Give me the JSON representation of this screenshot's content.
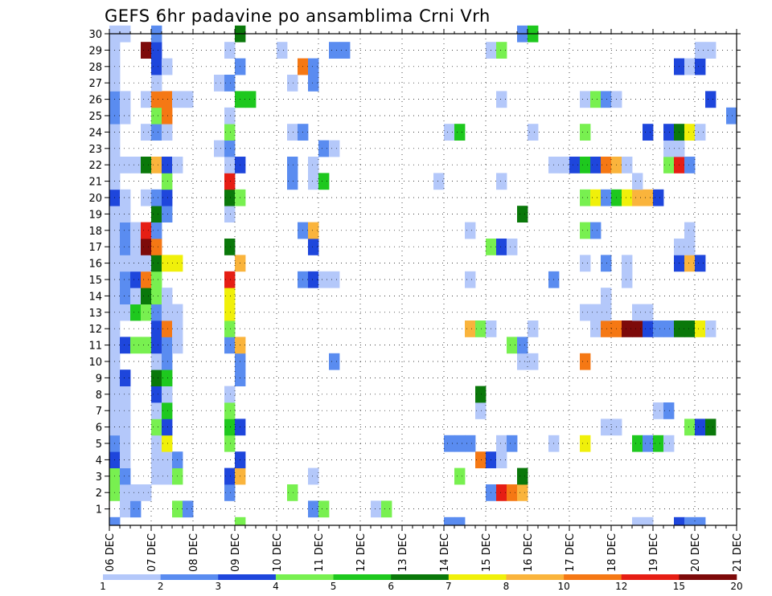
{
  "chart_data": {
    "type": "heatmap",
    "title": "GEFS 6hr padavine po ansamblima Crni Vrh",
    "xlabel": "",
    "ylabel": "",
    "x_tick_labels": [
      "06 DEC",
      "07 DEC",
      "08 DEC",
      "09 DEC",
      "10 DEC",
      "11 DEC",
      "12 DEC",
      "13 DEC",
      "14 DEC",
      "15 DEC",
      "16 DEC",
      "17 DEC",
      "18 DEC",
      "19 DEC",
      "20 DEC",
      "21 DEC"
    ],
    "y_tick_labels": [
      "1",
      "2",
      "3",
      "4",
      "5",
      "6",
      "7",
      "8",
      "9",
      "10",
      "11",
      "12",
      "13",
      "14",
      "15",
      "16",
      "17",
      "18",
      "19",
      "20",
      "21",
      "22",
      "23",
      "24",
      "25",
      "26",
      "27",
      "28",
      "29",
      "30"
    ],
    "xlim": [
      "06 DEC 00Z",
      "21 DEC 00Z"
    ],
    "ylim": [
      0,
      30
    ],
    "time_step_hours": 6,
    "grid": true,
    "colorbar": {
      "levels": [
        "1",
        "2",
        "3",
        "4",
        "5",
        "6",
        "7",
        "8",
        "10",
        "12",
        "15",
        "20"
      ],
      "colors": [
        "#b4c8fa",
        "#5a8cf0",
        "#1e46dc",
        "#78f050",
        "#1ec81e",
        "#0a780a",
        "#f0f00a",
        "#fab43c",
        "#f57814",
        "#e61e14",
        "#7d0a0a"
      ]
    },
    "cells": [
      [
        1,
        1,
        1
      ],
      [
        1,
        2,
        2
      ],
      [
        1,
        6,
        4
      ],
      [
        1,
        7,
        2
      ],
      [
        1,
        19,
        2
      ],
      [
        1,
        20,
        4
      ],
      [
        1,
        25,
        1
      ],
      [
        1,
        26,
        4
      ],
      [
        2,
        0,
        4
      ],
      [
        2,
        1,
        1
      ],
      [
        2,
        2,
        1
      ],
      [
        2,
        3,
        1
      ],
      [
        2,
        11,
        2
      ],
      [
        2,
        17,
        4
      ],
      [
        2,
        36,
        2
      ],
      [
        2,
        37,
        10
      ],
      [
        2,
        38,
        9
      ],
      [
        2,
        39,
        8
      ],
      [
        3,
        0,
        4
      ],
      [
        3,
        1,
        2
      ],
      [
        3,
        4,
        1
      ],
      [
        3,
        5,
        1
      ],
      [
        3,
        6,
        4
      ],
      [
        3,
        11,
        3
      ],
      [
        3,
        12,
        8
      ],
      [
        3,
        19,
        1
      ],
      [
        3,
        33,
        4
      ],
      [
        3,
        39,
        6
      ],
      [
        4,
        0,
        3
      ],
      [
        4,
        1,
        1
      ],
      [
        4,
        4,
        1
      ],
      [
        4,
        5,
        1
      ],
      [
        4,
        6,
        2
      ],
      [
        4,
        12,
        3
      ],
      [
        4,
        35,
        9
      ],
      [
        4,
        36,
        3
      ],
      [
        4,
        37,
        1
      ],
      [
        5,
        0,
        2
      ],
      [
        5,
        1,
        1
      ],
      [
        5,
        4,
        1
      ],
      [
        5,
        5,
        7
      ],
      [
        5,
        11,
        4
      ],
      [
        5,
        32,
        2
      ],
      [
        5,
        33,
        2
      ],
      [
        5,
        34,
        2
      ],
      [
        5,
        37,
        1
      ],
      [
        5,
        38,
        2
      ],
      [
        5,
        42,
        1
      ],
      [
        5,
        45,
        7
      ],
      [
        5,
        50,
        5
      ],
      [
        5,
        51,
        2
      ],
      [
        5,
        52,
        5
      ],
      [
        5,
        53,
        1
      ],
      [
        6,
        0,
        1
      ],
      [
        6,
        1,
        1
      ],
      [
        6,
        4,
        4
      ],
      [
        6,
        5,
        3
      ],
      [
        6,
        11,
        5
      ],
      [
        6,
        12,
        3
      ],
      [
        6,
        47,
        1
      ],
      [
        6,
        48,
        1
      ],
      [
        6,
        55,
        4
      ],
      [
        6,
        56,
        3
      ],
      [
        6,
        57,
        6
      ],
      [
        7,
        0,
        1
      ],
      [
        7,
        1,
        1
      ],
      [
        7,
        4,
        1
      ],
      [
        7,
        5,
        5
      ],
      [
        7,
        11,
        4
      ],
      [
        7,
        35,
        1
      ],
      [
        7,
        52,
        1
      ],
      [
        7,
        53,
        2
      ],
      [
        8,
        0,
        1
      ],
      [
        8,
        1,
        1
      ],
      [
        8,
        4,
        3
      ],
      [
        8,
        5,
        1
      ],
      [
        8,
        11,
        1
      ],
      [
        8,
        35,
        6
      ],
      [
        9,
        0,
        1
      ],
      [
        9,
        1,
        3
      ],
      [
        9,
        4,
        6
      ],
      [
        9,
        5,
        5
      ],
      [
        9,
        12,
        2
      ],
      [
        10,
        0,
        1
      ],
      [
        10,
        4,
        1
      ],
      [
        10,
        5,
        2
      ],
      [
        10,
        12,
        2
      ],
      [
        10,
        21,
        2
      ],
      [
        10,
        39,
        1
      ],
      [
        10,
        40,
        1
      ],
      [
        10,
        45,
        9
      ],
      [
        11,
        0,
        1
      ],
      [
        11,
        1,
        3
      ],
      [
        11,
        2,
        4
      ],
      [
        11,
        3,
        4
      ],
      [
        11,
        4,
        3
      ],
      [
        11,
        5,
        2
      ],
      [
        11,
        6,
        1
      ],
      [
        11,
        11,
        2
      ],
      [
        11,
        12,
        8
      ],
      [
        11,
        38,
        4
      ],
      [
        11,
        39,
        2
      ],
      [
        12,
        0,
        1
      ],
      [
        12,
        4,
        3
      ],
      [
        12,
        5,
        9
      ],
      [
        12,
        6,
        1
      ],
      [
        12,
        11,
        4
      ],
      [
        12,
        34,
        8
      ],
      [
        12,
        35,
        4
      ],
      [
        12,
        36,
        1
      ],
      [
        12,
        40,
        1
      ],
      [
        12,
        46,
        1
      ],
      [
        12,
        47,
        9
      ],
      [
        12,
        48,
        9
      ],
      [
        12,
        49,
        11
      ],
      [
        12,
        50,
        11
      ],
      [
        12,
        51,
        3
      ],
      [
        12,
        52,
        2
      ],
      [
        12,
        53,
        2
      ],
      [
        12,
        54,
        6
      ],
      [
        12,
        55,
        6
      ],
      [
        12,
        56,
        7
      ],
      [
        12,
        57,
        1
      ],
      [
        13,
        0,
        1
      ],
      [
        13,
        1,
        1
      ],
      [
        13,
        2,
        5
      ],
      [
        13,
        3,
        4
      ],
      [
        13,
        4,
        2
      ],
      [
        13,
        5,
        1
      ],
      [
        13,
        6,
        1
      ],
      [
        13,
        11,
        7
      ],
      [
        13,
        45,
        1
      ],
      [
        13,
        46,
        1
      ],
      [
        13,
        47,
        1
      ],
      [
        13,
        50,
        1
      ],
      [
        13,
        51,
        1
      ],
      [
        14,
        0,
        1
      ],
      [
        14,
        1,
        2
      ],
      [
        14,
        2,
        1
      ],
      [
        14,
        3,
        6
      ],
      [
        14,
        4,
        4
      ],
      [
        14,
        5,
        1
      ],
      [
        14,
        11,
        7
      ],
      [
        14,
        47,
        1
      ],
      [
        15,
        0,
        1
      ],
      [
        15,
        1,
        2
      ],
      [
        15,
        2,
        3
      ],
      [
        15,
        3,
        9
      ],
      [
        15,
        4,
        4
      ],
      [
        15,
        11,
        10
      ],
      [
        15,
        18,
        2
      ],
      [
        15,
        19,
        3
      ],
      [
        15,
        20,
        1
      ],
      [
        15,
        21,
        1
      ],
      [
        15,
        34,
        1
      ],
      [
        15,
        42,
        2
      ],
      [
        15,
        49,
        1
      ],
      [
        16,
        0,
        1
      ],
      [
        16,
        1,
        1
      ],
      [
        16,
        2,
        1
      ],
      [
        16,
        3,
        1
      ],
      [
        16,
        4,
        6
      ],
      [
        16,
        5,
        7
      ],
      [
        16,
        6,
        7
      ],
      [
        16,
        12,
        8
      ],
      [
        16,
        45,
        1
      ],
      [
        16,
        47,
        2
      ],
      [
        16,
        49,
        1
      ],
      [
        16,
        54,
        3
      ],
      [
        16,
        55,
        8
      ],
      [
        16,
        56,
        3
      ],
      [
        17,
        0,
        1
      ],
      [
        17,
        1,
        2
      ],
      [
        17,
        2,
        1
      ],
      [
        17,
        3,
        11
      ],
      [
        17,
        4,
        9
      ],
      [
        17,
        11,
        6
      ],
      [
        17,
        19,
        3
      ],
      [
        17,
        36,
        4
      ],
      [
        17,
        37,
        3
      ],
      [
        17,
        38,
        1
      ],
      [
        17,
        54,
        1
      ],
      [
        17,
        55,
        1
      ],
      [
        18,
        0,
        1
      ],
      [
        18,
        1,
        2
      ],
      [
        18,
        2,
        1
      ],
      [
        18,
        3,
        10
      ],
      [
        18,
        4,
        2
      ],
      [
        18,
        18,
        2
      ],
      [
        18,
        19,
        8
      ],
      [
        18,
        34,
        1
      ],
      [
        18,
        45,
        4
      ],
      [
        18,
        46,
        2
      ],
      [
        18,
        55,
        1
      ],
      [
        19,
        0,
        1
      ],
      [
        19,
        1,
        1
      ],
      [
        19,
        4,
        6
      ],
      [
        19,
        5,
        2
      ],
      [
        19,
        11,
        1
      ],
      [
        19,
        39,
        6
      ],
      [
        20,
        0,
        3
      ],
      [
        20,
        1,
        1
      ],
      [
        20,
        3,
        1
      ],
      [
        20,
        4,
        2
      ],
      [
        20,
        5,
        3
      ],
      [
        20,
        11,
        6
      ],
      [
        20,
        12,
        4
      ],
      [
        20,
        45,
        4
      ],
      [
        20,
        46,
        7
      ],
      [
        20,
        47,
        2
      ],
      [
        20,
        48,
        5
      ],
      [
        20,
        49,
        7
      ],
      [
        20,
        50,
        8
      ],
      [
        20,
        51,
        8
      ],
      [
        20,
        52,
        3
      ],
      [
        21,
        0,
        1
      ],
      [
        21,
        5,
        4
      ],
      [
        21,
        11,
        10
      ],
      [
        21,
        17,
        2
      ],
      [
        21,
        19,
        1
      ],
      [
        21,
        20,
        5
      ],
      [
        21,
        31,
        1
      ],
      [
        21,
        37,
        1
      ],
      [
        21,
        50,
        1
      ],
      [
        22,
        0,
        1
      ],
      [
        22,
        1,
        1
      ],
      [
        22,
        2,
        1
      ],
      [
        22,
        3,
        6
      ],
      [
        22,
        4,
        8
      ],
      [
        22,
        5,
        3
      ],
      [
        22,
        6,
        1
      ],
      [
        22,
        11,
        1
      ],
      [
        22,
        12,
        3
      ],
      [
        22,
        17,
        2
      ],
      [
        22,
        19,
        1
      ],
      [
        22,
        42,
        1
      ],
      [
        22,
        43,
        1
      ],
      [
        22,
        44,
        3
      ],
      [
        22,
        45,
        5
      ],
      [
        22,
        46,
        3
      ],
      [
        22,
        47,
        9
      ],
      [
        22,
        48,
        8
      ],
      [
        22,
        49,
        1
      ],
      [
        22,
        53,
        4
      ],
      [
        22,
        54,
        10
      ],
      [
        22,
        55,
        2
      ],
      [
        23,
        0,
        1
      ],
      [
        23,
        10,
        1
      ],
      [
        23,
        11,
        2
      ],
      [
        23,
        20,
        2
      ],
      [
        23,
        21,
        1
      ],
      [
        23,
        53,
        1
      ],
      [
        23,
        54,
        1
      ],
      [
        24,
        0,
        1
      ],
      [
        24,
        3,
        1
      ],
      [
        24,
        4,
        2
      ],
      [
        24,
        5,
        1
      ],
      [
        24,
        11,
        4
      ],
      [
        24,
        17,
        1
      ],
      [
        24,
        18,
        2
      ],
      [
        24,
        32,
        1
      ],
      [
        24,
        33,
        5
      ],
      [
        24,
        40,
        1
      ],
      [
        24,
        45,
        4
      ],
      [
        24,
        51,
        3
      ],
      [
        24,
        53,
        3
      ],
      [
        24,
        54,
        6
      ],
      [
        24,
        55,
        7
      ],
      [
        24,
        56,
        1
      ],
      [
        25,
        0,
        2
      ],
      [
        25,
        1,
        1
      ],
      [
        25,
        4,
        4
      ],
      [
        25,
        5,
        9
      ],
      [
        25,
        11,
        1
      ],
      [
        25,
        59,
        2
      ],
      [
        26,
        0,
        2
      ],
      [
        26,
        1,
        1
      ],
      [
        26,
        3,
        1
      ],
      [
        26,
        4,
        9
      ],
      [
        26,
        5,
        9
      ],
      [
        26,
        6,
        1
      ],
      [
        26,
        7,
        1
      ],
      [
        26,
        12,
        5
      ],
      [
        26,
        13,
        5
      ],
      [
        26,
        37,
        1
      ],
      [
        26,
        45,
        1
      ],
      [
        26,
        46,
        4
      ],
      [
        26,
        47,
        2
      ],
      [
        26,
        48,
        1
      ],
      [
        26,
        57,
        3
      ],
      [
        27,
        0,
        1
      ],
      [
        27,
        4,
        1
      ],
      [
        27,
        10,
        1
      ],
      [
        27,
        11,
        2
      ],
      [
        27,
        17,
        1
      ],
      [
        27,
        19,
        2
      ],
      [
        28,
        0,
        1
      ],
      [
        28,
        4,
        3
      ],
      [
        28,
        5,
        1
      ],
      [
        28,
        12,
        2
      ],
      [
        28,
        18,
        9
      ],
      [
        28,
        19,
        2
      ],
      [
        28,
        54,
        3
      ],
      [
        28,
        55,
        1
      ],
      [
        28,
        56,
        3
      ],
      [
        29,
        0,
        1
      ],
      [
        29,
        3,
        11
      ],
      [
        29,
        4,
        3
      ],
      [
        29,
        11,
        1
      ],
      [
        29,
        16,
        1
      ],
      [
        29,
        21,
        2
      ],
      [
        29,
        22,
        2
      ],
      [
        29,
        36,
        1
      ],
      [
        29,
        37,
        4
      ],
      [
        29,
        56,
        1
      ],
      [
        29,
        57,
        1
      ],
      [
        30,
        0,
        1
      ],
      [
        30,
        1,
        1
      ],
      [
        30,
        4,
        2
      ],
      [
        30,
        12,
        6
      ],
      [
        30,
        39,
        2
      ],
      [
        30,
        40,
        5
      ]
    ],
    "bottom_row_cells": [
      [
        0,
        2
      ],
      [
        12,
        4
      ],
      [
        32,
        2
      ],
      [
        33,
        2
      ],
      [
        50,
        1
      ],
      [
        51,
        1
      ],
      [
        54,
        3
      ],
      [
        55,
        2
      ],
      [
        56,
        2
      ]
    ]
  }
}
